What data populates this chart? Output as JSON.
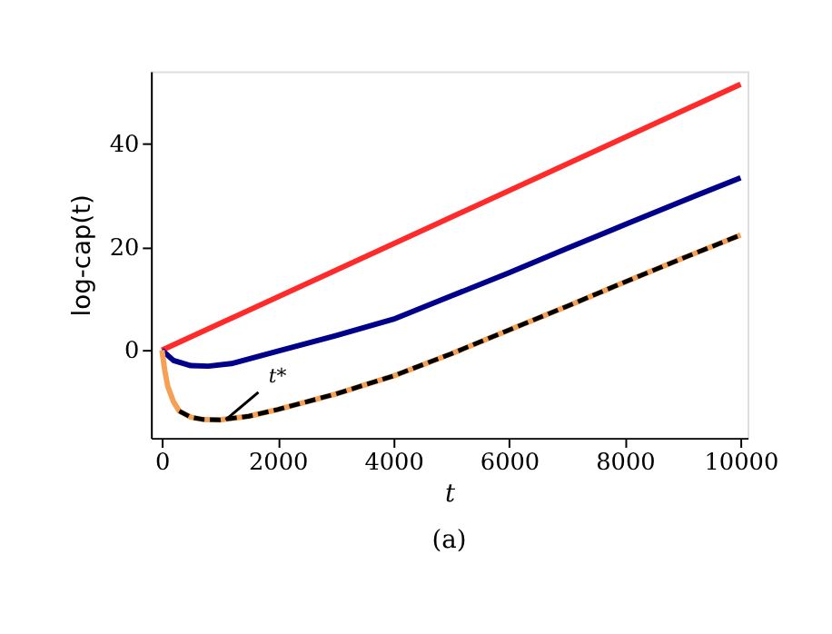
{
  "chart_data": {
    "type": "line",
    "xlabel": "t",
    "ylabel": "log-cap(t)",
    "xlim": [
      -190,
      10120
    ],
    "ylim": [
      -17,
      54
    ],
    "xticks": [
      0,
      2000,
      4000,
      6000,
      8000,
      10000
    ],
    "yticks": [
      0,
      20,
      40
    ],
    "grid": false,
    "line_style": "solid",
    "series": [
      {
        "color": "#ff2a2a",
        "x": [
          0,
          10000
        ],
        "values": [
          0,
          51.5
        ]
      },
      {
        "color": "#00008b",
        "x": [
          0,
          200,
          500,
          800,
          1200,
          2000,
          3000,
          4000,
          5000,
          6000,
          7000,
          8000,
          9000,
          10000
        ],
        "values": [
          0,
          -2,
          -3,
          -3.1,
          -2.6,
          -0.2,
          2.8,
          6,
          10.5,
          15,
          19.7,
          24.3,
          28.9,
          33.4
        ]
      },
      {
        "color": "#f5a055",
        "x": [
          0,
          50,
          100,
          200,
          300,
          500,
          700,
          1000,
          1500,
          2000,
          3000,
          4000,
          5000,
          6000,
          7000,
          8000,
          9000,
          10000
        ],
        "values": [
          0,
          -4,
          -7,
          -10,
          -11.8,
          -13,
          -13.4,
          -13.5,
          -12.8,
          -11.5,
          -8.5,
          -5,
          -0.7,
          3.9,
          8.5,
          13.2,
          17.8,
          22.3
        ]
      },
      {
        "color": "#000000",
        "line_style": "dashed",
        "x": [
          300,
          500,
          700,
          1000,
          1500,
          2000,
          3000,
          4000,
          5000,
          6000,
          7000,
          8000,
          9000,
          10000
        ],
        "values": [
          -11.8,
          -13,
          -13.4,
          -13.5,
          -12.8,
          -11.5,
          -8.5,
          -5,
          -0.7,
          3.9,
          8.5,
          13.2,
          17.8,
          22.3
        ]
      }
    ],
    "annotations": [
      {
        "text": "t*",
        "x": 1100,
        "y": -13.5
      },
      "(a)"
    ]
  }
}
